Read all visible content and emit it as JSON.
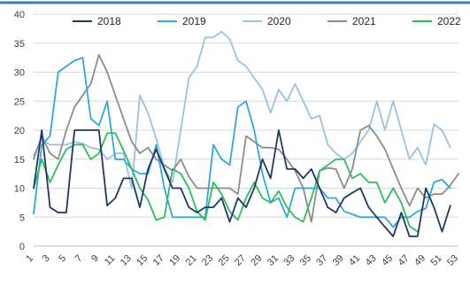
{
  "chart_data": {
    "type": "line",
    "title": "",
    "xlabel": "",
    "ylabel": "",
    "ylim": [
      0,
      40
    ],
    "yticks": [
      0,
      5,
      10,
      15,
      20,
      25,
      30,
      35,
      40
    ],
    "grid": "horizontal",
    "legend_position": "top",
    "x": [
      1,
      2,
      3,
      4,
      5,
      6,
      7,
      8,
      9,
      10,
      11,
      12,
      13,
      14,
      15,
      16,
      17,
      18,
      19,
      20,
      21,
      22,
      23,
      24,
      25,
      26,
      27,
      28,
      29,
      30,
      31,
      32,
      33,
      34,
      35,
      36,
      37,
      38,
      39,
      40,
      41,
      42,
      43,
      44,
      45,
      46,
      47,
      48,
      49,
      50,
      51,
      52,
      53
    ],
    "x_tick_labels": [
      "1",
      "3",
      "5",
      "7",
      "9",
      "11",
      "13",
      "15",
      "17",
      "19",
      "21",
      "23",
      "25",
      "27",
      "29",
      "31",
      "33",
      "35",
      "37",
      "39",
      "41",
      "43",
      "45",
      "47",
      "49",
      "51",
      "53"
    ],
    "series": [
      {
        "name": "2018",
        "color": "#1f3864",
        "values": [
          10,
          20,
          6.7,
          5.8,
          5.8,
          20,
          20,
          20,
          20,
          7,
          8.3,
          11.7,
          11.7,
          6.7,
          13.3,
          16.7,
          13.3,
          10,
          10,
          6.7,
          5.8,
          6.7,
          6.7,
          8.3,
          4.2,
          8.3,
          6.7,
          10,
          15,
          11.7,
          20,
          13.3,
          13.3,
          11.7,
          13.3,
          10,
          6.7,
          5.8,
          8.3,
          9.2,
          10,
          6.7,
          5,
          3.3,
          1.7,
          5.8,
          1.7,
          1.7,
          10,
          6.7,
          2.5,
          7,
          null
        ]
      },
      {
        "name": "2019",
        "color": "#2fa8df",
        "values": [
          5.6,
          17.5,
          19,
          30,
          31,
          32,
          32.5,
          22,
          20.8,
          25,
          15,
          15,
          13.3,
          12.5,
          12.5,
          17.5,
          10,
          5,
          5,
          5,
          5,
          5,
          17.5,
          15,
          14,
          24,
          25,
          20,
          12.5,
          7.5,
          8.3,
          5,
          10,
          10,
          10,
          10,
          8.3,
          8.3,
          6,
          5.5,
          5,
          5,
          5,
          5,
          3.3,
          5,
          5,
          6,
          6.5,
          11,
          11.5,
          10,
          null
        ]
      },
      {
        "name": "2020",
        "color": "#9ac3e2",
        "values": [
          15.7,
          18.3,
          17.5,
          17.5,
          17.5,
          18,
          17.7,
          17,
          16.7,
          15,
          16,
          16,
          10,
          26,
          23,
          18.5,
          13.5,
          11,
          20,
          29,
          31,
          36,
          36,
          37,
          35.7,
          32,
          31,
          29,
          27,
          23,
          27,
          25,
          28,
          25,
          22,
          22.5,
          17.5,
          16,
          15,
          16,
          18,
          20,
          25,
          20,
          25,
          20,
          15,
          17,
          14,
          21,
          20,
          17,
          null
        ]
      },
      {
        "name": "2021",
        "color": "#8c8c8c",
        "values": [
          15,
          19,
          16,
          15,
          20,
          24,
          26,
          28,
          33,
          30,
          26,
          22,
          18,
          16,
          17,
          15,
          14,
          13,
          15,
          12,
          10,
          10,
          10,
          10,
          10,
          9,
          19,
          18,
          17,
          17,
          16.7,
          15,
          13,
          10,
          4.2,
          13,
          13.5,
          13.3,
          10,
          13.3,
          20,
          20.8,
          19,
          16.7,
          13.3,
          10,
          7,
          10,
          8.3,
          9,
          9,
          10.5,
          12.5
        ]
      },
      {
        "name": "2022",
        "color": "#2ebd5b",
        "values": [
          10,
          15,
          11,
          14,
          16.7,
          17.5,
          17.5,
          15,
          16,
          19.5,
          19.5,
          16.5,
          13.3,
          10,
          8,
          4.5,
          5,
          13.3,
          12.5,
          10,
          6,
          4.5,
          11,
          9,
          6,
          4.5,
          8.3,
          11,
          8.3,
          7.5,
          9.5,
          6.7,
          5,
          4.2,
          8.3,
          13,
          14,
          15,
          15,
          11.7,
          12.5,
          11,
          11,
          7.5,
          10,
          7.5,
          3.5,
          2.5,
          null,
          null,
          null,
          null,
          null
        ]
      }
    ]
  }
}
